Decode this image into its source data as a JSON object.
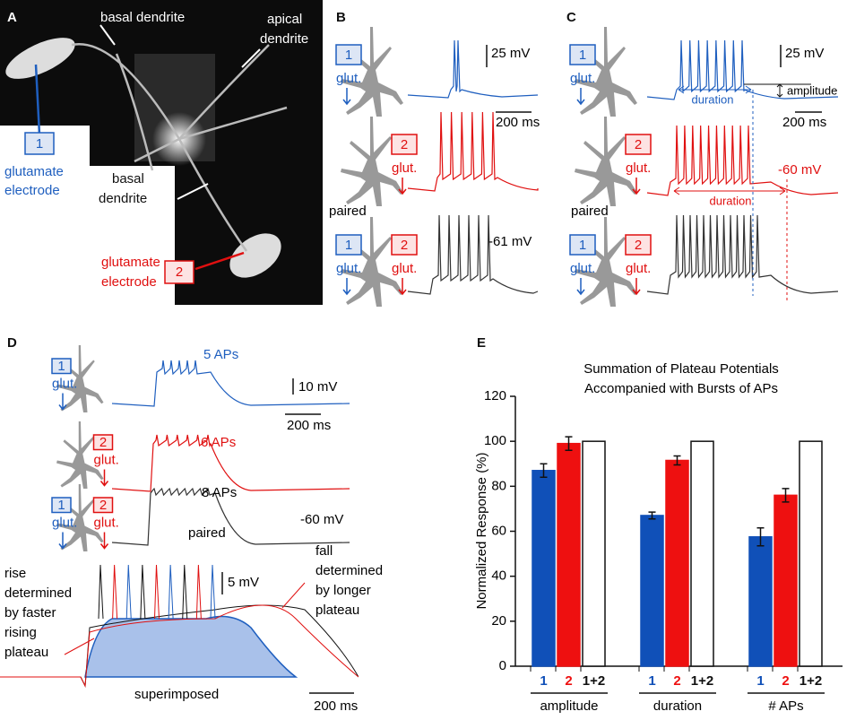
{
  "panels": {
    "A": {
      "label": "A",
      "basal_top": "basal dendrite",
      "apical": [
        "apical",
        "dendrite"
      ],
      "electrode1": "1",
      "glut1": [
        "glutamate",
        "electrode"
      ],
      "basal_bottom": [
        "basal",
        "dendrite"
      ],
      "glut2": [
        "glutamate",
        "electrode"
      ],
      "electrode2": "2"
    },
    "B": {
      "label": "B",
      "e1": "1",
      "glut": "glut.",
      "e2": "2",
      "scale_v": "25 mV",
      "scale_t": "200 ms",
      "paired": "paired",
      "vm": "-61 mV"
    },
    "C": {
      "label": "C",
      "e1": "1",
      "glut": "glut.",
      "e2": "2",
      "scale_v": "25 mV",
      "amplitude": "amplitude",
      "scale_t": "200 ms",
      "duration": "duration",
      "vm": "-60 mV",
      "paired": "paired"
    },
    "D": {
      "label": "D",
      "e1": "1",
      "glut": "glut.",
      "e2": "2",
      "aps1": "5 APs",
      "aps2": "6 APs",
      "aps3": "8 APs",
      "scale_v": "10 mV",
      "scale_t": "200 ms",
      "paired": "paired",
      "vm": "-60 mV",
      "rise": [
        "rise",
        "determined",
        "by faster",
        "rising",
        "plateau"
      ],
      "scale_v2": "5 mV",
      "fall": [
        "fall",
        "determined",
        "by longer",
        "plateau"
      ],
      "superimposed": "superimposed",
      "scale_t2": "200 ms"
    },
    "E": {
      "label": "E"
    }
  },
  "chart_data": {
    "type": "bar",
    "title": [
      "Summation of Plateau Potentials",
      "Accompanied with Bursts of APs"
    ],
    "ylabel": "Normalized Response (%)",
    "categories": [
      "amplitude",
      "duration",
      "# APs"
    ],
    "series": [
      {
        "name": "1",
        "color": "#1050b8",
        "values": [
          87,
          67,
          57.5
        ],
        "errors": [
          3,
          1.5,
          4
        ]
      },
      {
        "name": "2",
        "color": "#ee1010",
        "values": [
          99,
          91.5,
          76
        ],
        "errors": [
          3,
          2,
          3
        ]
      },
      {
        "name": "1+2",
        "color": "#ffffff",
        "values": [
          100,
          100,
          100
        ]
      }
    ],
    "ylim": [
      0,
      120
    ],
    "yticks": [
      0,
      20,
      40,
      60,
      80,
      100,
      120
    ]
  }
}
